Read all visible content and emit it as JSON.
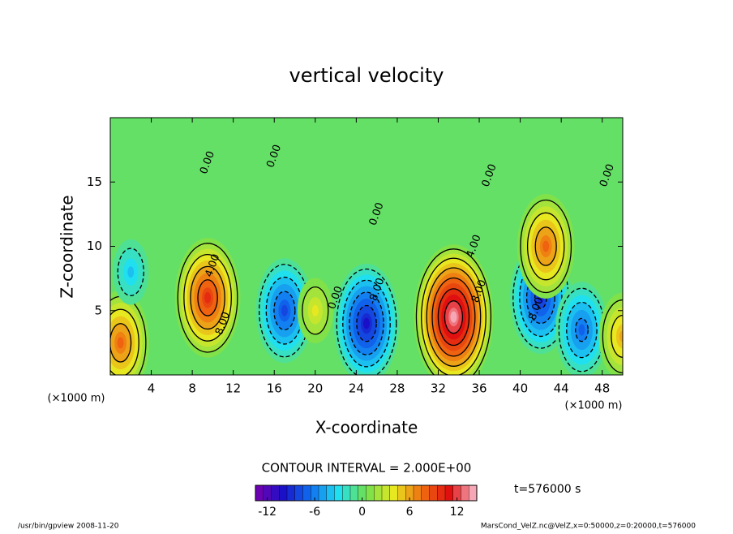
{
  "chart_data": {
    "type": "contour",
    "title": "vertical velocity",
    "xlabel": "X-coordinate",
    "ylabel": "Z-coordinate",
    "xunit": "(×1000 m)",
    "yunit": "(×1000 m)",
    "xlim": [
      0,
      50
    ],
    "ylim": [
      0,
      20
    ],
    "xticks": [
      4,
      8,
      12,
      16,
      20,
      24,
      28,
      32,
      36,
      40,
      44,
      48
    ],
    "yticks": [
      5,
      10,
      15
    ],
    "contour_interval": 2,
    "contour_interval_label": "CONTOUR INTERVAL = 2.000E+00",
    "time_label": "t=576000 s",
    "clim": [
      -13.5,
      14.5
    ],
    "colorbar_ticks": [
      -12,
      -6,
      0,
      6,
      12
    ],
    "colormap": [
      "#7a00b0",
      "#1a10c8",
      "#1070f0",
      "#20e0f0",
      "#70e050",
      "#e8e820",
      "#f07010",
      "#e01010",
      "#f8c0d0"
    ],
    "extrema": [
      {
        "x": 9.5,
        "z": 6,
        "value": 10
      },
      {
        "x": 33.5,
        "z": 4.5,
        "value": 14
      },
      {
        "x": 25,
        "z": 4,
        "value": -10
      },
      {
        "x": 42,
        "z": 6,
        "value": -9
      },
      {
        "x": 17,
        "z": 5,
        "value": -8
      },
      {
        "x": 46,
        "z": 3.5,
        "value": -7
      },
      {
        "x": 1,
        "z": 2.5,
        "value": 8
      },
      {
        "x": 50,
        "z": 3,
        "value": 6
      },
      {
        "x": 42.5,
        "z": 10,
        "value": 8
      },
      {
        "x": 2,
        "z": 8,
        "value": -4
      },
      {
        "x": 20,
        "z": 5,
        "value": 4
      }
    ],
    "contour_labels": [
      {
        "x": 10,
        "z": 8.5,
        "text": "4.00"
      },
      {
        "x": 11,
        "z": 4,
        "text": "8.00"
      },
      {
        "x": 9.5,
        "z": 16.5,
        "text": "0.00"
      },
      {
        "x": 16,
        "z": 17,
        "text": "0.00"
      },
      {
        "x": 26,
        "z": 6.5,
        "text": "-8.00"
      },
      {
        "x": 26,
        "z": 12.5,
        "text": "0.00"
      },
      {
        "x": 35.5,
        "z": 10,
        "text": "4.00"
      },
      {
        "x": 36,
        "z": 6.5,
        "text": "8.00"
      },
      {
        "x": 37,
        "z": 15.5,
        "text": "0.00"
      },
      {
        "x": 41.5,
        "z": 5,
        "text": "-8.00"
      },
      {
        "x": 48.5,
        "z": 15.5,
        "text": "0.00"
      },
      {
        "x": 22,
        "z": 6,
        "text": "0.00"
      }
    ],
    "footer_left": "/usr/bin/gpview  2008-11-20",
    "footer_right": "MarsCond_VelZ.nc@VelZ,x=0:50000,z=0:20000,t=576000"
  }
}
